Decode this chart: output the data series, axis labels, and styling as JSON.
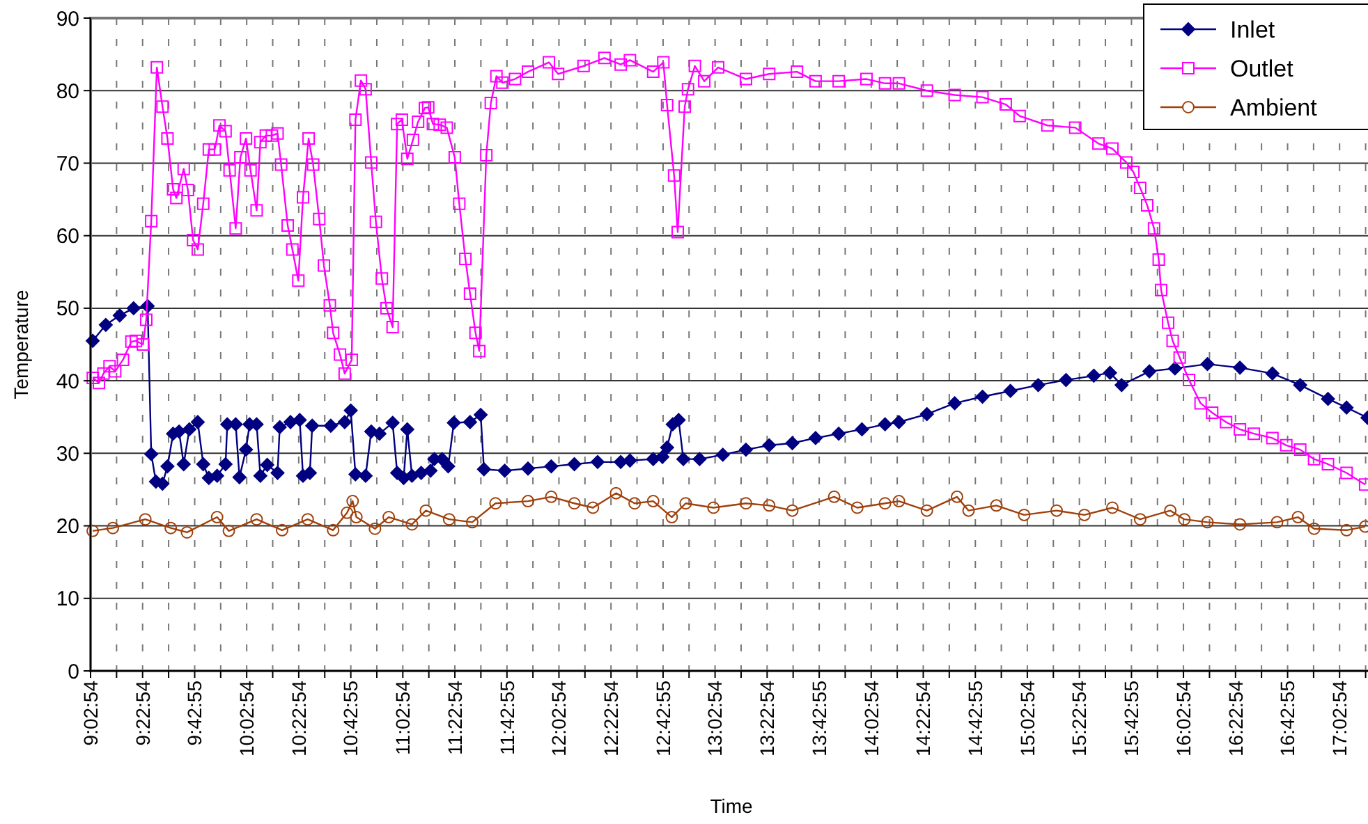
{
  "chart_data": {
    "type": "line",
    "xlabel": "Time",
    "ylabel": "Temperature",
    "xlim": [
      9.0483,
      17.257
    ],
    "ylim": [
      0,
      90
    ],
    "yticks": [
      0,
      10,
      20,
      30,
      40,
      50,
      60,
      70,
      80,
      90
    ],
    "xticks": [
      {
        "value": 9.0483,
        "label": "9:02:54"
      },
      {
        "value": 9.215,
        "label": null
      },
      {
        "value": 9.3817,
        "label": "9:22:54"
      },
      {
        "value": 9.5483,
        "label": null
      },
      {
        "value": 9.7153,
        "label": "9:42:55"
      },
      {
        "value": 9.8817,
        "label": null
      },
      {
        "value": 10.0483,
        "label": "10:02:54"
      },
      {
        "value": 10.215,
        "label": null
      },
      {
        "value": 10.3817,
        "label": "10:22:54"
      },
      {
        "value": 10.5483,
        "label": null
      },
      {
        "value": 10.7153,
        "label": "10:42:55"
      },
      {
        "value": 10.8817,
        "label": null
      },
      {
        "value": 11.0483,
        "label": "11:02:54"
      },
      {
        "value": 11.215,
        "label": null
      },
      {
        "value": 11.3817,
        "label": "11:22:54"
      },
      {
        "value": 11.5483,
        "label": null
      },
      {
        "value": 11.7153,
        "label": "11:42:55"
      },
      {
        "value": 11.8817,
        "label": null
      },
      {
        "value": 12.0483,
        "label": "12:02:54"
      },
      {
        "value": 12.215,
        "label": null
      },
      {
        "value": 12.3817,
        "label": "12:22:54"
      },
      {
        "value": 12.5483,
        "label": null
      },
      {
        "value": 12.7153,
        "label": "12:42:55"
      },
      {
        "value": 12.8817,
        "label": null
      },
      {
        "value": 13.0483,
        "label": "13:02:54"
      },
      {
        "value": 13.215,
        "label": null
      },
      {
        "value": 13.3817,
        "label": "13:22:54"
      },
      {
        "value": 13.5483,
        "label": null
      },
      {
        "value": 13.7153,
        "label": "13:42:55"
      },
      {
        "value": 13.8817,
        "label": null
      },
      {
        "value": 14.0483,
        "label": "14:02:54"
      },
      {
        "value": 14.215,
        "label": null
      },
      {
        "value": 14.3817,
        "label": "14:22:54"
      },
      {
        "value": 14.5483,
        "label": null
      },
      {
        "value": 14.7153,
        "label": "14:42:55"
      },
      {
        "value": 14.8817,
        "label": null
      },
      {
        "value": 15.0483,
        "label": "15:02:54"
      },
      {
        "value": 15.215,
        "label": null
      },
      {
        "value": 15.3817,
        "label": "15:22:54"
      },
      {
        "value": 15.5483,
        "label": null
      },
      {
        "value": 15.7153,
        "label": "15:42:55"
      },
      {
        "value": 15.8817,
        "label": null
      },
      {
        "value": 16.0483,
        "label": "16:02:54"
      },
      {
        "value": 16.215,
        "label": null
      },
      {
        "value": 16.3817,
        "label": "16:22:54"
      },
      {
        "value": 16.5483,
        "label": null
      },
      {
        "value": 16.7153,
        "label": "16:42:55"
      },
      {
        "value": 16.8817,
        "label": null
      },
      {
        "value": 17.0483,
        "label": "17:02:54"
      },
      {
        "value": 17.215,
        "label": null
      }
    ],
    "grid": true,
    "legend": "top right",
    "line_style": "solid",
    "series": [
      {
        "name": "Inlet",
        "color": "#000080",
        "marker": "diamond",
        "x": [
          9.062,
          9.146,
          9.235,
          9.324,
          9.414,
          9.437,
          9.467,
          9.509,
          9.541,
          9.577,
          9.615,
          9.645,
          9.681,
          9.735,
          9.77,
          9.806,
          9.859,
          9.913,
          9.924,
          9.978,
          10.002,
          10.044,
          10.067,
          10.112,
          10.136,
          10.18,
          10.246,
          10.26,
          10.329,
          10.388,
          10.409,
          10.453,
          10.468,
          10.587,
          10.676,
          10.715,
          10.745,
          10.81,
          10.846,
          10.899,
          10.983,
          11.012,
          11.054,
          11.077,
          11.107,
          11.166,
          11.226,
          11.25,
          11.3,
          11.339,
          11.375,
          11.479,
          11.547,
          11.568,
          11.701,
          11.85,
          11.999,
          12.147,
          12.296,
          12.444,
          12.503,
          12.652,
          12.711,
          12.741,
          12.777,
          12.815,
          12.845,
          12.949,
          13.098,
          13.246,
          13.395,
          13.543,
          13.692,
          13.84,
          13.989,
          14.137,
          14.226,
          14.405,
          14.583,
          14.761,
          14.94,
          15.118,
          15.296,
          15.474,
          15.578,
          15.652,
          15.83,
          15.994,
          16.202,
          16.41,
          16.618,
          16.796,
          16.974,
          17.093,
          17.227
        ],
        "values": [
          45.5,
          47.7,
          49.0,
          50.0,
          50.3,
          29.9,
          26.1,
          25.8,
          28.2,
          32.7,
          33.0,
          28.5,
          33.3,
          34.3,
          28.5,
          26.6,
          26.9,
          28.5,
          34.0,
          34.0,
          26.7,
          30.5,
          34.0,
          34.0,
          26.9,
          28.4,
          27.3,
          33.6,
          34.3,
          34.6,
          26.9,
          27.3,
          33.8,
          33.8,
          34.3,
          35.9,
          27.1,
          26.9,
          33.0,
          32.7,
          34.2,
          27.3,
          26.6,
          33.3,
          26.9,
          27.3,
          27.6,
          29.2,
          29.2,
          28.2,
          34.2,
          34.3,
          35.3,
          27.8,
          27.6,
          27.9,
          28.2,
          28.5,
          28.8,
          28.8,
          29.0,
          29.2,
          29.5,
          30.8,
          34.0,
          34.6,
          29.2,
          29.2,
          29.8,
          30.5,
          31.1,
          31.4,
          32.1,
          32.7,
          33.3,
          34.0,
          34.3,
          35.4,
          36.9,
          37.8,
          38.6,
          39.4,
          40.1,
          40.7,
          41.1,
          39.4,
          41.3,
          41.7,
          42.3,
          41.8,
          41.0,
          39.4,
          37.5,
          36.3,
          34.9
        ]
      },
      {
        "name": "Outlet",
        "color": "#ff00ff",
        "marker": "square",
        "x": [
          9.063,
          9.102,
          9.131,
          9.17,
          9.206,
          9.256,
          9.31,
          9.339,
          9.384,
          9.405,
          9.437,
          9.473,
          9.509,
          9.541,
          9.577,
          9.598,
          9.645,
          9.672,
          9.705,
          9.735,
          9.77,
          9.806,
          9.844,
          9.874,
          9.913,
          9.939,
          9.978,
          10.008,
          10.044,
          10.073,
          10.112,
          10.136,
          10.171,
          10.21,
          10.246,
          10.269,
          10.311,
          10.341,
          10.379,
          10.409,
          10.445,
          10.474,
          10.513,
          10.543,
          10.581,
          10.602,
          10.646,
          10.676,
          10.721,
          10.745,
          10.78,
          10.81,
          10.846,
          10.876,
          10.914,
          10.944,
          10.983,
          11.012,
          11.042,
          11.077,
          11.113,
          11.146,
          11.19,
          11.211,
          11.241,
          11.285,
          11.33,
          11.381,
          11.41,
          11.449,
          11.479,
          11.514,
          11.538,
          11.583,
          11.612,
          11.648,
          11.686,
          11.767,
          11.85,
          11.984,
          12.043,
          12.206,
          12.34,
          12.444,
          12.503,
          12.652,
          12.717,
          12.741,
          12.786,
          12.809,
          12.854,
          12.875,
          12.919,
          12.979,
          13.068,
          13.246,
          13.395,
          13.573,
          13.692,
          13.84,
          14.018,
          14.137,
          14.226,
          14.405,
          14.583,
          14.761,
          14.91,
          14.999,
          15.177,
          15.355,
          15.504,
          15.593,
          15.682,
          15.727,
          15.771,
          15.816,
          15.86,
          15.89,
          15.905,
          15.95,
          15.979,
          16.024,
          16.084,
          16.158,
          16.232,
          16.321,
          16.41,
          16.499,
          16.618,
          16.707,
          16.796,
          16.885,
          16.974,
          17.093,
          17.212
        ],
        "values": [
          40.4,
          39.7,
          41.0,
          42.0,
          41.3,
          42.9,
          45.4,
          45.5,
          45.0,
          48.4,
          62.0,
          83.2,
          77.8,
          73.4,
          66.4,
          65.2,
          69.2,
          66.3,
          59.4,
          58.1,
          64.4,
          71.9,
          71.9,
          75.2,
          74.4,
          69.0,
          61.0,
          70.8,
          73.4,
          69.0,
          63.5,
          72.9,
          73.8,
          73.8,
          74.1,
          69.8,
          61.4,
          58.1,
          53.8,
          65.3,
          73.4,
          69.8,
          62.3,
          55.9,
          50.4,
          46.6,
          43.6,
          41.0,
          42.9,
          76.0,
          81.4,
          80.2,
          70.1,
          61.9,
          54.1,
          50.0,
          47.4,
          75.4,
          76.0,
          70.6,
          73.2,
          75.7,
          77.6,
          77.7,
          75.4,
          75.3,
          74.9,
          70.8,
          64.4,
          56.8,
          52.0,
          46.6,
          44.1,
          71.1,
          78.3,
          82.0,
          81.1,
          81.6,
          82.6,
          83.9,
          82.3,
          83.4,
          84.5,
          83.6,
          84.2,
          82.6,
          83.9,
          78.0,
          68.3,
          60.5,
          77.8,
          80.2,
          83.4,
          81.3,
          83.2,
          81.6,
          82.3,
          82.6,
          81.3,
          81.3,
          81.6,
          81.0,
          81.0,
          80.0,
          79.4,
          79.1,
          78.1,
          76.5,
          75.2,
          74.9,
          72.7,
          72.0,
          70.1,
          68.8,
          66.6,
          64.2,
          61.0,
          56.7,
          52.5,
          48.0,
          45.5,
          43.2,
          40.1,
          36.9,
          35.6,
          34.3,
          33.3,
          32.7,
          32.1,
          31.1,
          30.5,
          29.2,
          28.5,
          27.3,
          25.7
        ]
      },
      {
        "name": "Ambient",
        "color": "#a0400a",
        "marker": "circle",
        "x": [
          9.062,
          9.191,
          9.399,
          9.562,
          9.666,
          9.859,
          9.934,
          10.112,
          10.275,
          10.439,
          10.602,
          10.691,
          10.727,
          10.751,
          10.87,
          10.958,
          11.107,
          11.196,
          11.345,
          11.493,
          11.642,
          11.85,
          11.999,
          12.147,
          12.266,
          12.414,
          12.533,
          12.652,
          12.771,
          12.86,
          13.038,
          13.246,
          13.395,
          13.543,
          13.811,
          13.959,
          14.137,
          14.226,
          14.405,
          14.598,
          14.672,
          14.85,
          15.028,
          15.236,
          15.414,
          15.593,
          15.771,
          15.964,
          16.054,
          16.202,
          16.41,
          16.648,
          16.782,
          16.885,
          17.093,
          17.212
        ],
        "values": [
          19.3,
          19.7,
          20.9,
          19.7,
          19.1,
          21.2,
          19.3,
          20.9,
          19.4,
          20.9,
          19.4,
          21.8,
          23.4,
          21.2,
          19.6,
          21.2,
          20.2,
          22.1,
          20.9,
          20.5,
          23.1,
          23.4,
          24.0,
          23.1,
          22.5,
          24.5,
          23.1,
          23.4,
          21.2,
          23.1,
          22.5,
          23.1,
          22.8,
          22.1,
          24.0,
          22.5,
          23.1,
          23.4,
          22.1,
          24.0,
          22.1,
          22.8,
          21.5,
          22.1,
          21.5,
          22.5,
          20.9,
          22.1,
          20.9,
          20.5,
          20.2,
          20.5,
          21.2,
          19.6,
          19.4,
          19.9
        ]
      }
    ]
  }
}
